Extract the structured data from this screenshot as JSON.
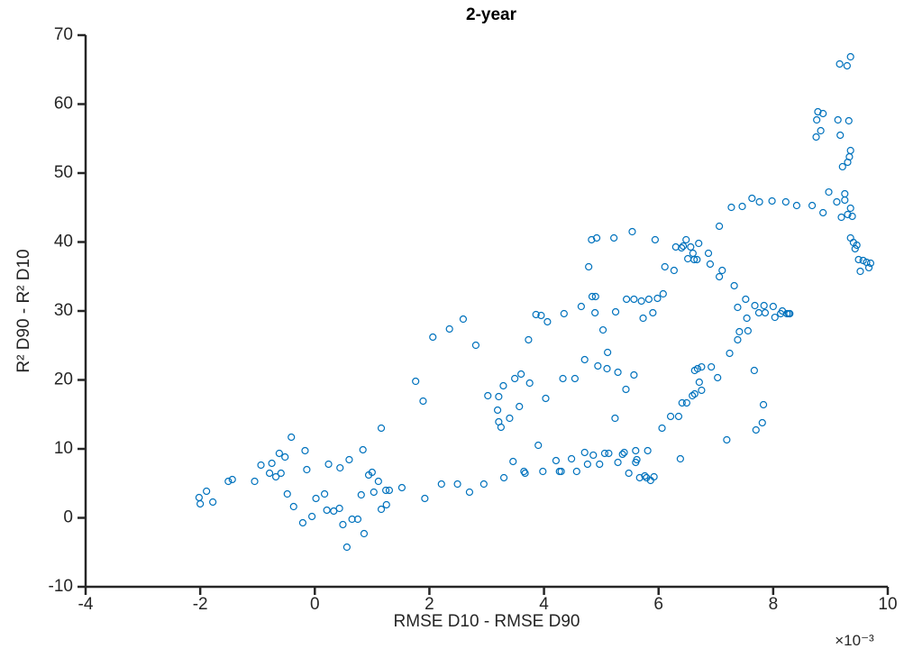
{
  "chart_data": {
    "type": "scatter",
    "title": "2-year",
    "xlabel": "RMSE D10 - RMSE D90",
    "ylabel": "R² D90 - R² D10",
    "x_multiplier": "×10⁻³",
    "color": "#0072bd",
    "xlim": [
      -4,
      10
    ],
    "ylim": [
      -10,
      70
    ],
    "xticks": [
      -4,
      -2,
      0,
      2,
      4,
      6,
      8,
      10
    ],
    "yticks": [
      -10,
      0,
      10,
      20,
      30,
      40,
      50,
      60,
      70
    ],
    "x": [
      -2.02,
      -2.0,
      -1.89,
      -1.78,
      -1.51,
      -1.44,
      -1.05,
      -0.94,
      -0.79,
      -0.75,
      -0.68,
      -0.62,
      -0.59,
      -0.52,
      -0.48,
      -0.41,
      -0.37,
      -0.21,
      -0.17,
      -0.14,
      -0.05,
      0.02,
      0.17,
      0.24,
      0.21,
      0.33,
      0.44,
      0.43,
      0.49,
      0.56,
      0.6,
      0.65,
      0.75,
      0.81,
      0.84,
      0.86,
      0.94,
      1.0,
      1.03,
      1.11,
      1.16,
      1.16,
      1.24,
      1.25,
      1.3,
      1.52,
      1.89,
      1.92,
      1.76,
      2.06,
      2.21,
      2.35,
      2.49,
      2.59,
      2.7,
      2.81,
      2.95,
      3.02,
      3.19,
      3.21,
      3.21,
      3.25,
      3.29,
      3.3,
      3.4,
      3.46,
      3.49,
      3.57,
      3.6,
      3.65,
      3.67,
      3.73,
      3.75,
      3.86,
      3.9,
      3.95,
      3.98,
      4.03,
      4.06,
      4.21,
      4.27,
      4.3,
      4.33,
      4.35,
      4.48,
      4.54,
      4.57,
      4.65,
      4.71,
      4.71,
      4.76,
      4.78,
      4.83,
      4.84,
      4.86,
      4.89,
      4.9,
      4.92,
      4.94,
      4.97,
      5.03,
      5.06,
      5.1,
      5.11,
      5.13,
      5.22,
      5.24,
      5.25,
      5.29,
      5.29,
      5.37,
      5.4,
      5.43,
      5.44,
      5.48,
      5.54,
      5.57,
      5.57,
      5.6,
      5.6,
      5.62,
      5.67,
      5.7,
      5.73,
      5.76,
      5.79,
      5.81,
      5.83,
      5.86,
      5.9,
      5.92,
      5.94,
      5.98,
      6.06,
      6.08,
      6.11,
      6.21,
      6.27,
      6.3,
      6.35,
      6.38,
      6.4,
      6.41,
      6.43,
      6.48,
      6.49,
      6.51,
      6.56,
      6.59,
      6.6,
      6.62,
      6.63,
      6.63,
      6.68,
      6.67,
      6.7,
      6.71,
      6.75,
      6.75,
      6.87,
      6.9,
      6.92,
      7.03,
      7.06,
      7.06,
      7.11,
      7.19,
      7.24,
      7.27,
      7.32,
      7.38,
      7.38,
      7.41,
      7.46,
      7.52,
      7.54,
      7.56,
      7.63,
      7.67,
      7.68,
      7.7,
      7.75,
      7.76,
      7.81,
      7.83,
      7.84,
      7.86,
      7.98,
      8.0,
      8.03,
      8.13,
      8.16,
      8.22,
      8.24,
      8.27,
      8.29,
      8.41,
      8.68,
      8.75,
      8.76,
      8.78,
      8.83,
      8.87,
      8.87,
      8.97,
      9.11,
      9.13,
      9.16,
      9.17,
      9.19,
      9.21,
      9.25,
      9.25,
      9.29,
      9.3,
      9.3,
      9.32,
      9.35,
      9.35,
      9.35,
      9.35,
      9.33,
      9.38,
      9.4,
      9.43,
      9.46,
      9.49,
      9.52,
      9.57,
      9.63,
      9.67,
      9.7
    ],
    "y": [
      2.94,
      2.03,
      3.86,
      2.29,
      5.29,
      5.56,
      5.29,
      7.65,
      6.47,
      7.91,
      5.95,
      9.35,
      6.47,
      8.82,
      3.46,
      11.7,
      1.63,
      -0.72,
      9.74,
      6.99,
      0.2,
      2.81,
      3.46,
      7.78,
      1.11,
      0.98,
      7.25,
      1.37,
      -0.98,
      -4.25,
      8.43,
      -0.2,
      -0.2,
      3.33,
      9.87,
      -2.29,
      6.21,
      6.6,
      3.73,
      5.29,
      13.01,
      1.24,
      3.99,
      1.9,
      3.99,
      4.38,
      16.93,
      2.81,
      19.8,
      26.21,
      4.9,
      27.39,
      4.9,
      28.82,
      3.73,
      25.03,
      4.9,
      17.71,
      15.62,
      17.58,
      13.92,
      13.14,
      19.15,
      5.82,
      14.44,
      8.17,
      20.2,
      16.14,
      20.85,
      6.73,
      6.47,
      25.82,
      19.54,
      29.48,
      10.52,
      29.35,
      6.73,
      17.32,
      28.43,
      8.3,
      6.73,
      6.73,
      20.2,
      29.61,
      8.56,
      20.2,
      6.73,
      30.65,
      9.48,
      22.94,
      7.78,
      36.41,
      40.33,
      32.09,
      9.09,
      29.74,
      32.09,
      40.59,
      22.03,
      7.78,
      27.25,
      9.35,
      21.63,
      23.99,
      9.35,
      40.59,
      14.44,
      29.87,
      21.11,
      8.04,
      9.22,
      9.48,
      18.63,
      31.7,
      6.47,
      41.5,
      31.7,
      20.72,
      9.74,
      8.04,
      8.43,
      5.82,
      31.44,
      28.95,
      6.08,
      5.82,
      9.74,
      31.7,
      5.42,
      29.74,
      5.95,
      40.33,
      31.83,
      13.01,
      32.48,
      36.41,
      14.71,
      35.88,
      39.28,
      14.71,
      8.56,
      39.15,
      16.67,
      39.41,
      40.33,
      16.67,
      37.58,
      39.28,
      17.71,
      38.37,
      37.45,
      17.97,
      21.37,
      21.63,
      37.45,
      39.8,
      19.67,
      21.89,
      18.5,
      38.37,
      36.8,
      21.89,
      20.33,
      42.29,
      34.97,
      35.88,
      11.31,
      23.86,
      45.03,
      33.66,
      25.82,
      30.52,
      26.99,
      45.16,
      31.7,
      28.95,
      27.12,
      46.34,
      21.37,
      30.78,
      12.75,
      29.74,
      45.82,
      13.79,
      16.41,
      30.78,
      29.74,
      45.95,
      30.65,
      29.08,
      29.61,
      30.0,
      45.82,
      29.61,
      29.61,
      29.61,
      45.29,
      45.29,
      55.23,
      57.71,
      58.89,
      56.14,
      58.63,
      44.25,
      47.25,
      45.82,
      57.71,
      65.82,
      55.49,
      43.59,
      50.92,
      46.99,
      46.08,
      65.56,
      51.57,
      43.99,
      57.58,
      66.86,
      53.27,
      44.9,
      40.59,
      52.35,
      43.73,
      39.93,
      39.02,
      39.54,
      37.45,
      35.75,
      37.32,
      37.06,
      36.28,
      36.93
    ]
  }
}
